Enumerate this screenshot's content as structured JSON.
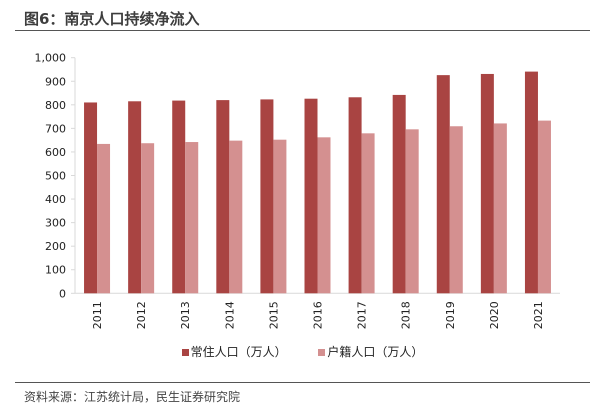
{
  "title": "图6：南京人口持续净流入",
  "source": "资料来源：江苏统计局，民生证券研究院",
  "colors": {
    "resident": "#a94442",
    "registered": "#d49090"
  },
  "chart_data": {
    "type": "bar",
    "categories": [
      "2011",
      "2012",
      "2013",
      "2014",
      "2015",
      "2016",
      "2017",
      "2018",
      "2019",
      "2020",
      "2021"
    ],
    "series": [
      {
        "name": "常住人口（万人）",
        "values": [
          810,
          815,
          818,
          820,
          823,
          826,
          832,
          842,
          926,
          931,
          941
        ]
      },
      {
        "name": "户籍人口（万人）",
        "values": [
          634,
          637,
          642,
          648,
          652,
          662,
          679,
          696,
          709,
          721,
          733
        ]
      }
    ],
    "ylim": [
      0,
      1000
    ],
    "yticks": [
      "0",
      "100",
      "200",
      "300",
      "400",
      "500",
      "600",
      "700",
      "800",
      "900",
      "1,000"
    ],
    "grid": false,
    "legend": "bottom"
  }
}
